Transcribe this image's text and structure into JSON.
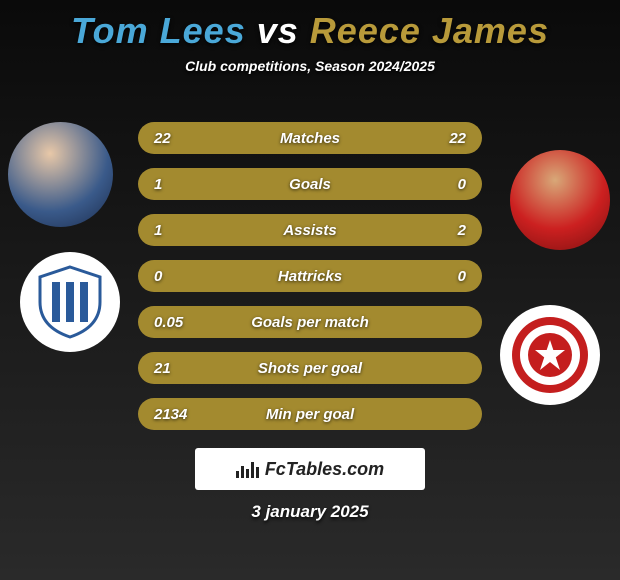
{
  "header": {
    "player1_name": "Tom Lees",
    "vs_text": "vs",
    "player2_name": "Reece James",
    "player1_color": "#4aa8d8",
    "player2_color": "#b89a3a",
    "subtitle": "Club competitions, Season 2024/2025"
  },
  "stats": [
    {
      "label": "Matches",
      "p1": "22",
      "p2": "22",
      "bg": "#a38a2f"
    },
    {
      "label": "Goals",
      "p1": "1",
      "p2": "0",
      "bg": "#a38a2f"
    },
    {
      "label": "Assists",
      "p1": "1",
      "p2": "2",
      "bg": "#a38a2f"
    },
    {
      "label": "Hattricks",
      "p1": "0",
      "p2": "0",
      "bg": "#a38a2f"
    },
    {
      "label": "Goals per match",
      "p1": "0.05",
      "p2": "",
      "bg": "#a38a2f"
    },
    {
      "label": "Shots per goal",
      "p1": "21",
      "p2": "",
      "bg": "#a38a2f"
    },
    {
      "label": "Min per goal",
      "p1": "2134",
      "p2": "",
      "bg": "#a38a2f"
    }
  ],
  "footer": {
    "site_label": "FcTables.com",
    "date": "3 january 2025"
  },
  "clubs": {
    "club1_primary": "#2a5a9a",
    "club1_stripe": "#ffffff",
    "club2_primary": "#c41e1e",
    "club2_secondary": "#ffffff"
  }
}
